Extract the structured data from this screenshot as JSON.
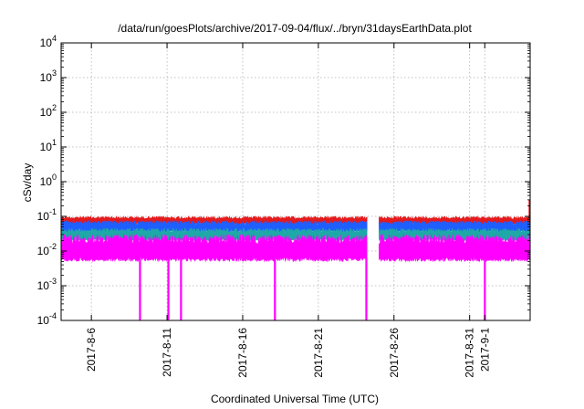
{
  "chart_data": {
    "type": "line",
    "title": "/data/run/goesPlots/archive/2017-09-04/flux/../bryn/31daysEarthData.plot",
    "xlabel": "Coordinated Universal Time (UTC)",
    "ylabel": "cSv/day",
    "yscale": "log",
    "ylim": [
      0.0001,
      10000
    ],
    "xlim": [
      "2017-08-04T00:00",
      "2017-09-04T00:00"
    ],
    "grid": true,
    "x_ticks": [
      "2017-8-6",
      "2017-8-11",
      "2017-8-16",
      "2017-8-21",
      "2017-8-26",
      "2017-8-31",
      "2017-9-1"
    ],
    "y_ticks": [
      {
        "value": 0.0001,
        "base": "10",
        "exp": "-4"
      },
      {
        "value": 0.001,
        "base": "10",
        "exp": "-3"
      },
      {
        "value": 0.01,
        "base": "10",
        "exp": "-2"
      },
      {
        "value": 0.1,
        "base": "10",
        "exp": "-1"
      },
      {
        "value": 1,
        "base": "10",
        "exp": "0"
      },
      {
        "value": 10,
        "base": "10",
        "exp": "1"
      },
      {
        "value": 100,
        "base": "10",
        "exp": "2"
      },
      {
        "value": 1000,
        "base": "10",
        "exp": "3"
      },
      {
        "value": 10000,
        "base": "10",
        "exp": "4"
      }
    ],
    "data_gap": [
      "2017-08-24T06:00",
      "2017-08-25T00:00"
    ],
    "series": [
      {
        "color": "#e41a1c",
        "band": [
          0.06,
          0.1
        ]
      },
      {
        "color": "#1f5fff",
        "band": [
          0.035,
          0.075
        ]
      },
      {
        "color": "#1fa8a8",
        "band": [
          0.02,
          0.045
        ]
      },
      {
        "color": "#ff00ff",
        "band": [
          0.005,
          0.03
        ]
      }
    ],
    "dropouts": [
      "2017-08-09T05:00",
      "2017-08-11T02:00",
      "2017-08-11T22:00",
      "2017-08-18T03:00",
      "2017-08-24T04:00",
      "2017-09-01T00:00"
    ],
    "end_spike": {
      "x": "2017-09-03T23:00",
      "value": 0.3
    }
  }
}
